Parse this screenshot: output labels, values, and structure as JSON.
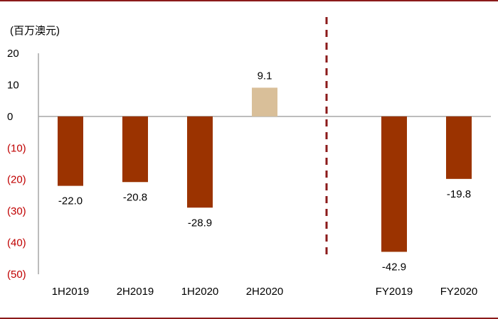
{
  "chart_data": {
    "type": "bar",
    "unit_label": "(百万澳元)",
    "categories": [
      "1H2019",
      "2H2019",
      "1H2020",
      "2H2020",
      "FY2019",
      "FY2020"
    ],
    "values": [
      -22.0,
      -20.8,
      -28.9,
      9.1,
      -42.9,
      -19.8
    ],
    "value_labels": [
      "-22.0",
      "-20.8",
      "-28.9",
      "9.1",
      "-42.9",
      "-19.8"
    ],
    "ylim": [
      -50,
      20
    ],
    "yticks": [
      20,
      10,
      0,
      -10,
      -20,
      -30,
      -40,
      -50
    ],
    "ytick_labels": [
      "20",
      "10",
      "0",
      "(10)",
      "(20)",
      "(30)",
      "(40)",
      "(50)"
    ],
    "colors": {
      "negative": "#9b3300",
      "positive": "#d9bf99",
      "divider": "#8b1a1a",
      "axis": "#a6a6a6",
      "frame": "#8b1a1a",
      "negative_tick": "#c00000"
    },
    "divider": "dashed vertical line between 2H2020 and FY2019"
  }
}
